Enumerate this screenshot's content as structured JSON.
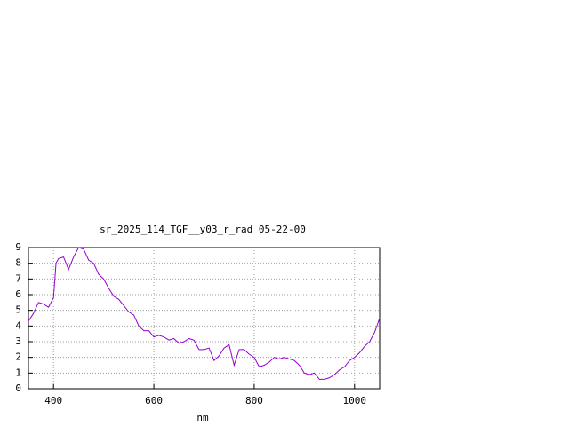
{
  "chart_data": {
    "type": "line",
    "title": "sr_2025_114_TGF__y03_r_rad 05-22-00",
    "x_label": "nm",
    "x": [
      350,
      360,
      370,
      380,
      390,
      400,
      405,
      410,
      420,
      430,
      440,
      450,
      460,
      470,
      480,
      490,
      500,
      510,
      520,
      530,
      540,
      550,
      560,
      570,
      580,
      590,
      600,
      610,
      620,
      630,
      640,
      650,
      660,
      670,
      680,
      690,
      700,
      710,
      720,
      730,
      740,
      750,
      760,
      770,
      780,
      790,
      800,
      810,
      820,
      830,
      840,
      850,
      860,
      870,
      880,
      890,
      900,
      910,
      920,
      930,
      940,
      950,
      960,
      970,
      980,
      990,
      1000,
      1010,
      1020,
      1030,
      1040,
      1050
    ],
    "series": [
      {
        "name": null,
        "color": "#9400d3",
        "values": [
          4.3,
          4.8,
          5.5,
          5.4,
          5.2,
          5.8,
          8.0,
          8.3,
          8.4,
          7.6,
          8.4,
          9.0,
          8.9,
          8.2,
          8.0,
          7.3,
          7.0,
          6.4,
          5.9,
          5.7,
          5.3,
          4.9,
          4.7,
          4.0,
          3.7,
          3.7,
          3.3,
          3.4,
          3.3,
          3.1,
          3.2,
          2.9,
          3.0,
          3.2,
          3.1,
          2.5,
          2.5,
          2.6,
          1.8,
          2.1,
          2.6,
          2.8,
          1.5,
          2.5,
          2.5,
          2.2,
          2.0,
          1.4,
          1.5,
          1.7,
          2.0,
          1.9,
          2.0,
          1.9,
          1.8,
          1.5,
          1.0,
          0.9,
          1.0,
          0.6,
          0.6,
          0.7,
          0.9,
          1.2,
          1.4,
          1.8,
          2.0,
          2.3,
          2.7,
          3.0,
          3.6,
          4.5
        ]
      }
    ],
    "xlim": [
      350,
      1050
    ],
    "xticks": [
      400,
      600,
      800,
      1000
    ],
    "ylim": [
      0,
      9
    ],
    "yticks": [
      0,
      1,
      2,
      3,
      4,
      5,
      6,
      7,
      8,
      9
    ],
    "grid": true
  }
}
